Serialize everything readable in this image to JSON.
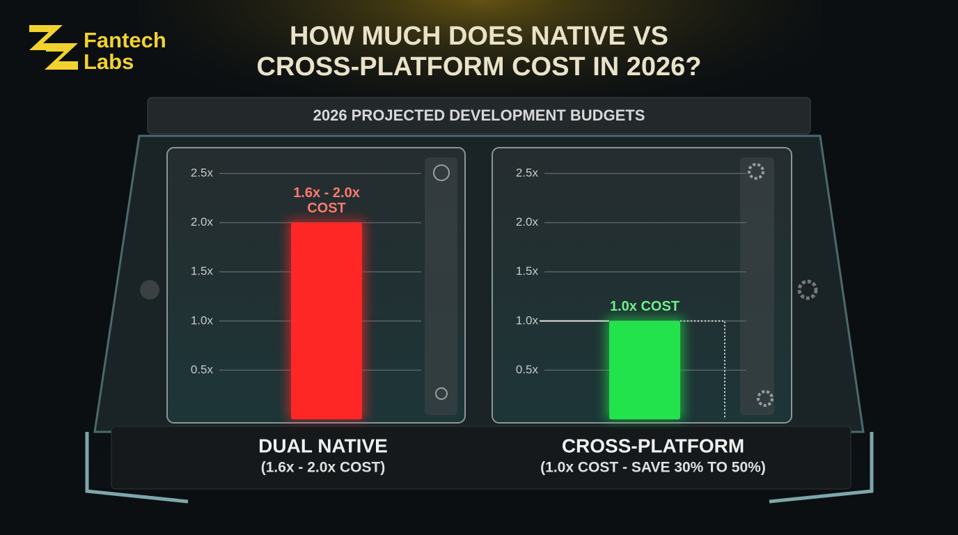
{
  "logo": {
    "line1": "Fantech",
    "line2": "Labs"
  },
  "title": [
    "HOW MUCH DOES NATIVE VS",
    "CROSS-PLATFORM COST IN 2026?"
  ],
  "subtitle": "2026 PROJECTED DEVELOPMENT BUDGETS",
  "chart_data": [
    {
      "type": "bar",
      "categories": [
        "DUAL NATIVE"
      ],
      "category_note": "(1.6x - 2.0x COST)",
      "values": [
        2.0
      ],
      "annotation": [
        "1.6x - 2.0x",
        "COST"
      ],
      "color": "#ff2626",
      "ylim": [
        0,
        2.5
      ],
      "yticks": [
        {
          "value": 0.5,
          "label": "0.5x"
        },
        {
          "value": 1.0,
          "label": "1.0x"
        },
        {
          "value": 1.5,
          "label": "1.5x"
        },
        {
          "value": 2.0,
          "label": "2.0x"
        },
        {
          "value": 2.5,
          "label": "2.5x"
        }
      ],
      "grid": true
    },
    {
      "type": "bar",
      "categories": [
        "CROSS-PLATFORM"
      ],
      "category_note": "(1.0x COST - SAVE 30% TO 50%)",
      "values": [
        1.0
      ],
      "annotation": [
        "1.0x COST"
      ],
      "color": "#22e34c",
      "ylim": [
        0,
        2.5
      ],
      "yticks": [
        {
          "value": 0.5,
          "label": "0.5x"
        },
        {
          "value": 1.0,
          "label": "1.0x"
        },
        {
          "value": 1.5,
          "label": "1.5x"
        },
        {
          "value": 2.0,
          "label": "2.0x"
        },
        {
          "value": 2.5,
          "label": "2.5x"
        }
      ],
      "grid": true
    }
  ]
}
